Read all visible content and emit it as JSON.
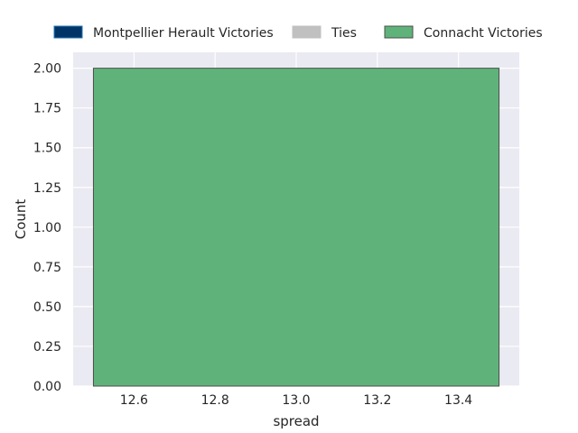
{
  "chart_data": {
    "type": "bar",
    "xlabel": "spread",
    "ylabel": "Count",
    "xlim": [
      12.45,
      13.55
    ],
    "ylim": [
      0,
      2.1
    ],
    "x_ticks": [
      12.6,
      12.8,
      13.0,
      13.2,
      13.4
    ],
    "x_tick_labels": [
      "12.6",
      "12.8",
      "13.0",
      "13.2",
      "13.4"
    ],
    "y_ticks": [
      0,
      0.25,
      0.5,
      0.75,
      1.0,
      1.25,
      1.5,
      1.75,
      2.0
    ],
    "y_tick_labels": [
      "0.00",
      "0.25",
      "0.50",
      "0.75",
      "1.00",
      "1.25",
      "1.50",
      "1.75",
      "2.00"
    ],
    "grid": true,
    "legend_position": "top, above plot",
    "series": [
      {
        "name": "Montpellier Herault Victories",
        "color": "#003366",
        "edge_color": "#1f77b4",
        "bins": []
      },
      {
        "name": "Ties",
        "color": "#c0c0c0",
        "edge_color": "#c0c0c0",
        "bins": []
      },
      {
        "name": "Connacht Victories",
        "color": "#5fb37a",
        "edge_color": "#4d4d4d",
        "bins": [
          {
            "x0": 12.5,
            "x1": 13.5,
            "count": 2
          }
        ]
      }
    ]
  },
  "colors": {
    "plot_background": "#eaeaf2",
    "grid": "#ffffff",
    "text": "#262626"
  }
}
